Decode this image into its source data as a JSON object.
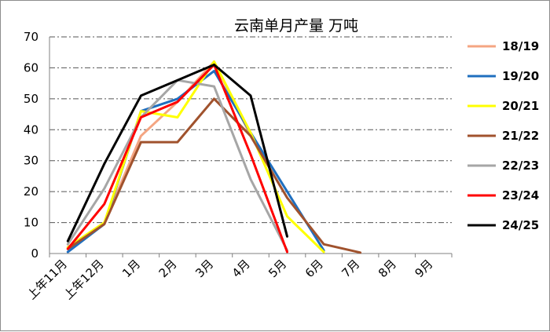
{
  "chart_data": {
    "type": "line",
    "title": "云南单月产量  万吨",
    "xlabel": "",
    "ylabel": "",
    "categories": [
      "上年11月",
      "上年12月",
      "1月",
      "2月",
      "3月",
      "4月",
      "5月",
      "6月",
      "7月",
      "8月",
      "9月"
    ],
    "ylim": [
      0,
      70
    ],
    "yticks": [
      0,
      10,
      20,
      30,
      40,
      50,
      60,
      70
    ],
    "grid": "horizontal dash-dot",
    "legend_position": "right",
    "series": [
      {
        "name": "18/19",
        "color": "#f4a582",
        "values": [
          2,
          10,
          38,
          49,
          62,
          38,
          18,
          null,
          null,
          null,
          null
        ]
      },
      {
        "name": "19/20",
        "color": "#1f6fbf",
        "values": [
          0.5,
          9.5,
          46,
          50,
          59,
          39,
          20,
          1,
          null,
          null,
          null
        ]
      },
      {
        "name": "20/21",
        "color": "#ffff00",
        "values": [
          2,
          10,
          46,
          44,
          62,
          39,
          12,
          0.5,
          null,
          null,
          null
        ]
      },
      {
        "name": "21/22",
        "color": "#a0522d",
        "values": [
          1.5,
          9.5,
          36,
          36,
          50,
          38,
          18,
          3,
          0.3,
          null,
          null
        ]
      },
      {
        "name": "22/23",
        "color": "#a6a6a6",
        "values": [
          3,
          21,
          44,
          56,
          54,
          24,
          1,
          null,
          null,
          null,
          null
        ]
      },
      {
        "name": "23/24",
        "color": "#ff0000",
        "values": [
          1.5,
          16,
          44,
          49,
          61,
          32,
          0.5,
          null,
          null,
          null,
          null
        ]
      },
      {
        "name": "24/25",
        "color": "#000000",
        "values": [
          4,
          29,
          51,
          56,
          61,
          51,
          5.5,
          null,
          null,
          null,
          null
        ]
      }
    ]
  }
}
